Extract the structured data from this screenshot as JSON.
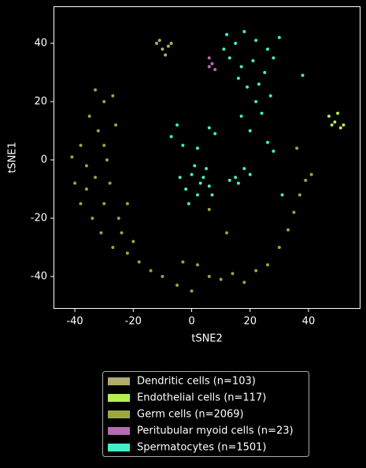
{
  "chart_data": {
    "type": "scatter",
    "x_label": "tSNE2",
    "y_label": "tSNE1",
    "xlim": [
      -47.3,
      57.8
    ],
    "ylim": [
      -51.1,
      52.7
    ],
    "xticks": [
      -40,
      -20,
      0,
      20,
      40
    ],
    "yticks": [
      -40,
      -20,
      0,
      20,
      40
    ],
    "series": [
      {
        "name": "Dendritic cells (n=103)",
        "color": "#b3ab6e",
        "x": [
          -12,
          -10,
          -8,
          -11,
          -9,
          -7
        ],
        "y": [
          40,
          38,
          39,
          41,
          36,
          40
        ]
      },
      {
        "name": "Endothelial cells (n=117)",
        "color": "#b6ee52",
        "x": [
          47,
          49,
          51,
          48,
          50,
          52
        ],
        "y": [
          15,
          13,
          11,
          12,
          16,
          12
        ]
      },
      {
        "name": "Germ cells (n=2069)",
        "color": "#9aa83b",
        "x": [
          -33,
          -30,
          -27,
          -35,
          -32,
          -38,
          -41,
          -36,
          -40,
          -33,
          -38,
          -34,
          -30,
          -28,
          -25,
          -31,
          -27,
          -22,
          -18,
          -14,
          -10,
          -5,
          0,
          -3,
          2,
          6,
          10,
          14,
          18,
          22,
          26,
          30,
          33,
          35,
          37,
          39,
          41,
          36,
          -36,
          -29,
          -24,
          -20,
          -26,
          -30,
          -22,
          12,
          6
        ],
        "y": [
          24,
          20,
          22,
          15,
          10,
          5,
          1,
          -2,
          -8,
          -6,
          -15,
          -20,
          -15,
          -8,
          -20,
          -25,
          -30,
          -32,
          -35,
          -38,
          -40,
          -43,
          -45,
          -35,
          -36,
          -40,
          -41,
          -39,
          -42,
          -38,
          -36,
          -30,
          -24,
          -18,
          -12,
          -7,
          -5,
          4,
          -10,
          0,
          -25,
          -28,
          12,
          5,
          -15,
          -25,
          -17
        ]
      },
      {
        "name": "Peritubular myoid cells (n=23)",
        "color": "#b66cb0",
        "x": [
          6,
          7,
          8,
          6
        ],
        "y": [
          35,
          33,
          31,
          32
        ]
      },
      {
        "name": "Spermatocytes (n=1501)",
        "color": "#42f0c8",
        "x": [
          12,
          15,
          18,
          22,
          26,
          13,
          17,
          21,
          25,
          19,
          22,
          17,
          24,
          20,
          28,
          30,
          16,
          23,
          27,
          11,
          0,
          3,
          5,
          -2,
          2,
          6,
          4,
          -4,
          1,
          7,
          -1,
          2,
          -5,
          -7,
          -3,
          6,
          8,
          15,
          18,
          20,
          16,
          13,
          28,
          31,
          26,
          38
        ],
        "y": [
          43,
          40,
          44,
          41,
          38,
          35,
          32,
          34,
          30,
          25,
          20,
          15,
          16,
          10,
          35,
          42,
          28,
          26,
          22,
          38,
          -5,
          -8,
          -3,
          -10,
          -12,
          -9,
          -6,
          -6,
          -2,
          -12,
          -15,
          4,
          12,
          8,
          5,
          11,
          9,
          -6,
          -3,
          -5,
          -8,
          -7,
          3,
          -12,
          6,
          29
        ]
      }
    ]
  }
}
